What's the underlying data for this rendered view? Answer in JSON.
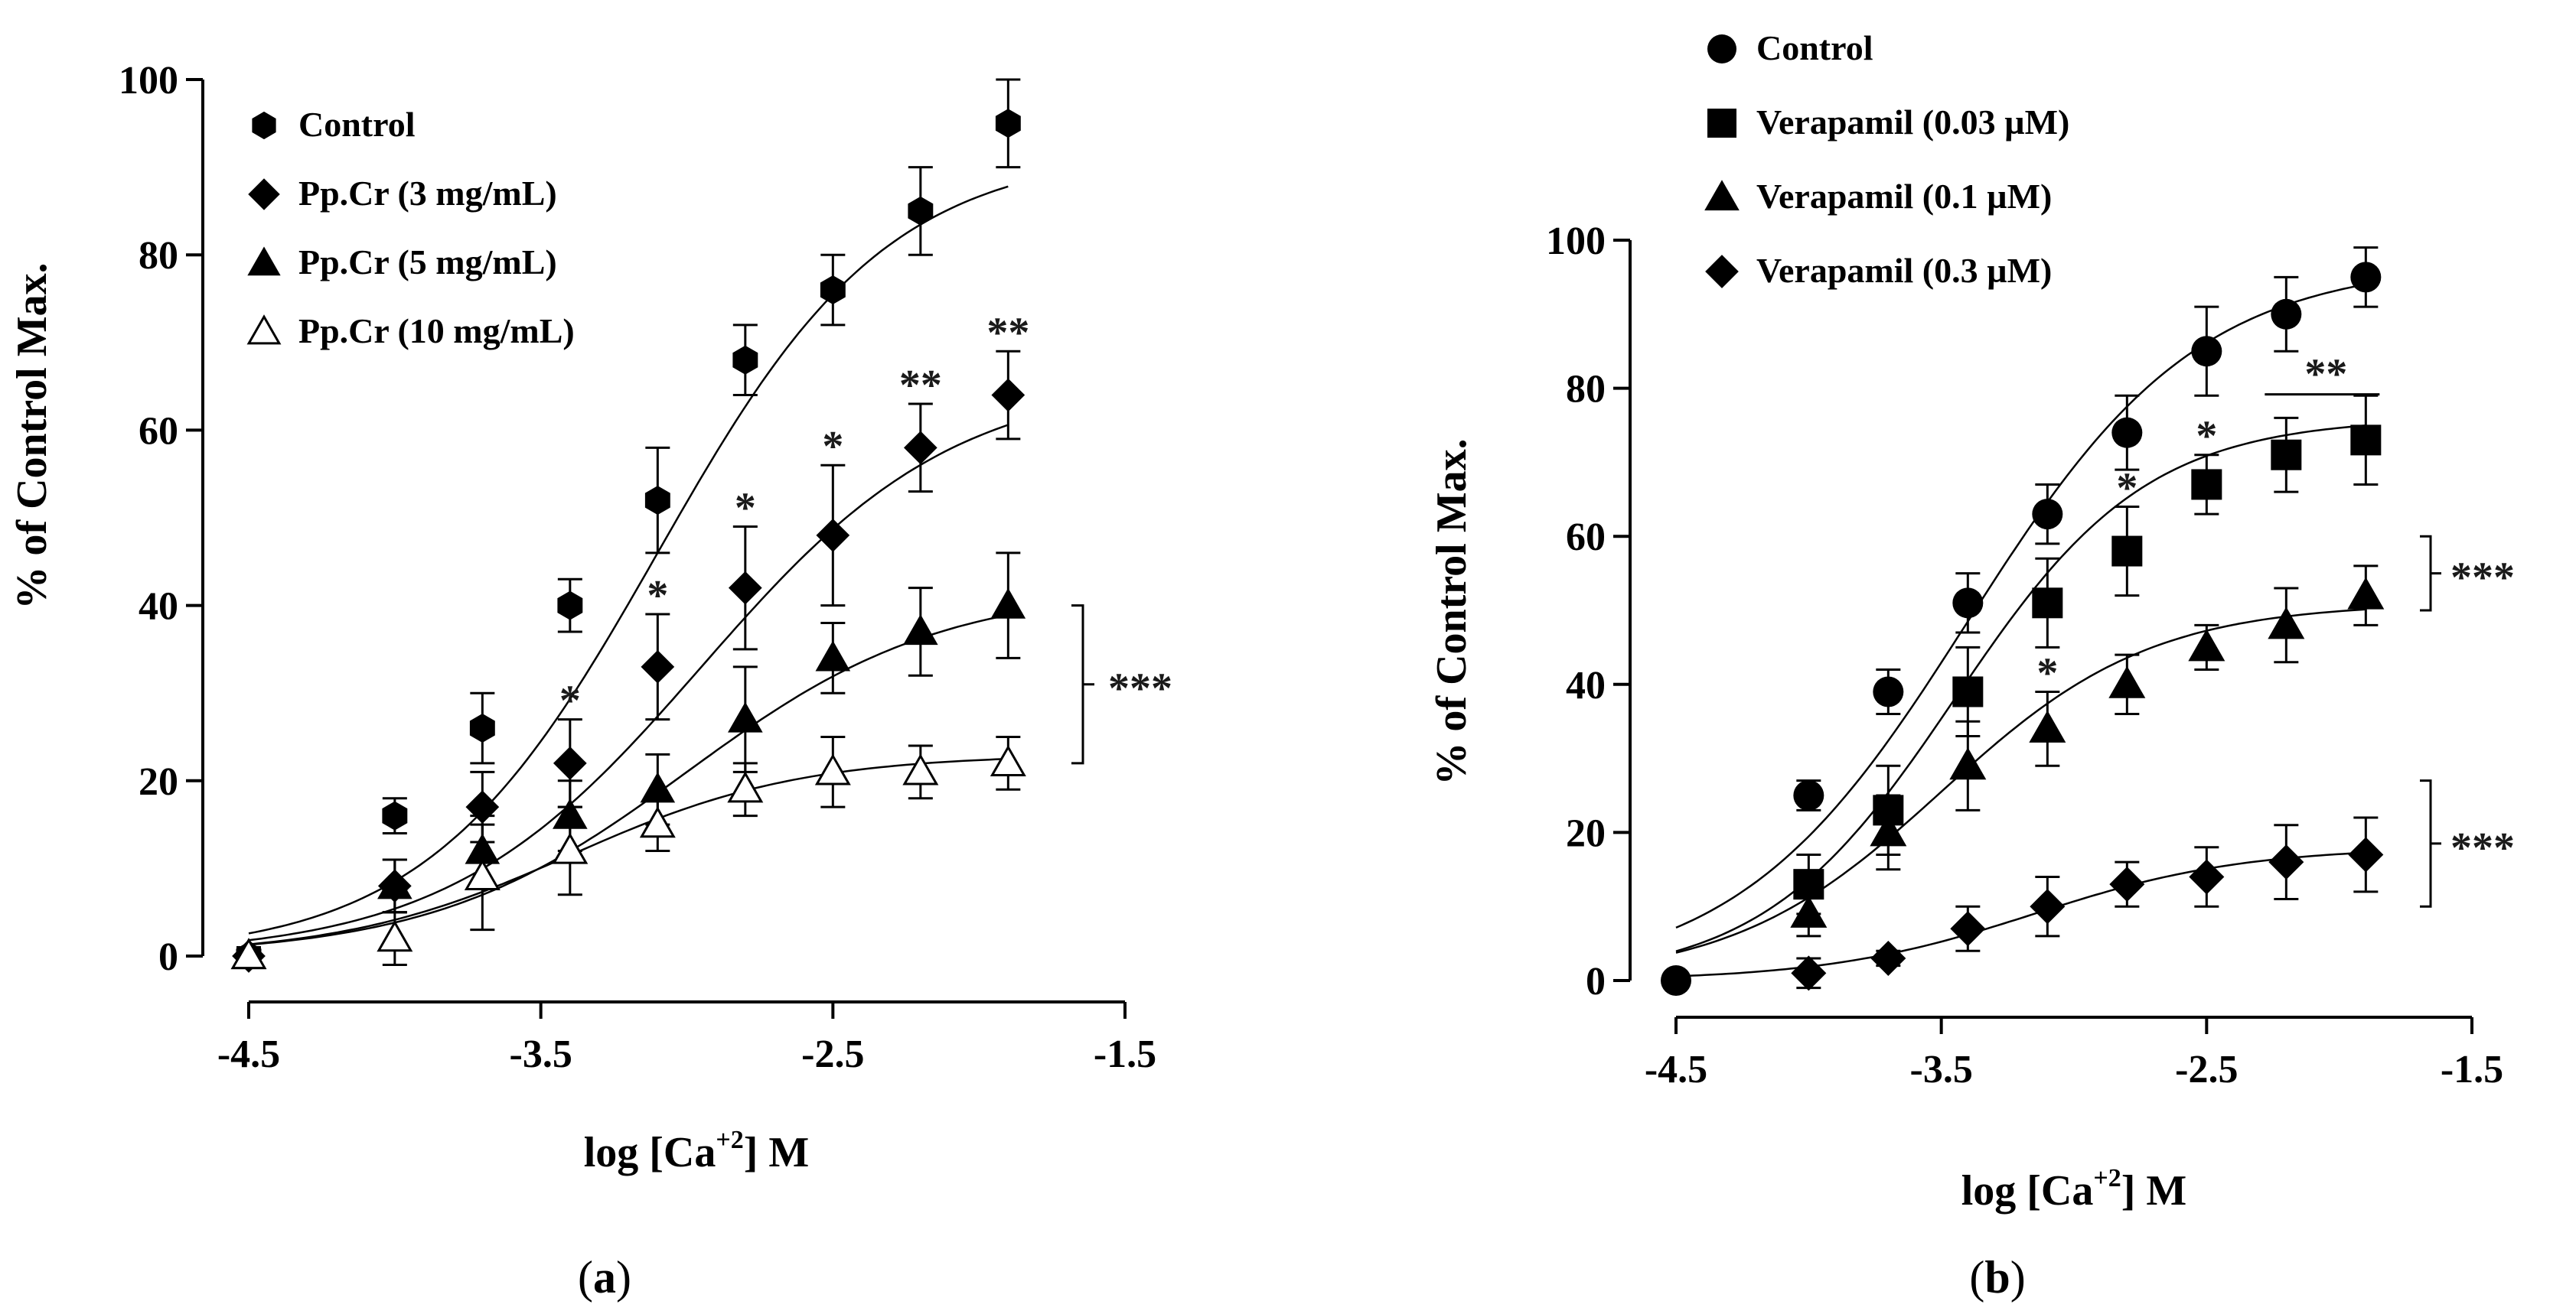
{
  "chart_data": [
    {
      "type": "line",
      "panel_label": "(a)",
      "xlabel_main": "log [Ca",
      "xlabel_sup": "+2",
      "xlabel_tail": "] M",
      "ylabel": "% of Control Max.",
      "xlim": [
        -4.5,
        -1.5
      ],
      "ylim": [
        0,
        100
      ],
      "xticks": [
        "-4.5",
        "-3.5",
        "-2.5",
        "-1.5"
      ],
      "xtick_values": [
        -4.5,
        -3.5,
        -2.5,
        -1.5
      ],
      "yticks": [
        "0",
        "20",
        "40",
        "60",
        "80",
        "100"
      ],
      "ytick_values": [
        0,
        20,
        40,
        60,
        80,
        100
      ],
      "legend_position": "top-left",
      "series": [
        {
          "name": "Control",
          "marker": "hexagon",
          "x": [
            -4.5,
            -4.0,
            -3.7,
            -3.4,
            -3.1,
            -2.8,
            -2.5,
            -2.2,
            -1.9
          ],
          "values": [
            0,
            16,
            26,
            40,
            52,
            68,
            76,
            85,
            95
          ],
          "errors": [
            1,
            2,
            4,
            3,
            6,
            4,
            4,
            5,
            5
          ],
          "curve": {
            "bottom": 0,
            "top": 92,
            "ec50": -3.1,
            "hill": 1.1
          },
          "stars": []
        },
        {
          "name": "Pp.Cr (3 mg/mL)",
          "marker": "diamond",
          "x": [
            -4.5,
            -4.0,
            -3.7,
            -3.4,
            -3.1,
            -2.8,
            -2.5,
            -2.2,
            -1.9
          ],
          "values": [
            0,
            8,
            17,
            22,
            33,
            42,
            48,
            58,
            64
          ],
          "errors": [
            1,
            3,
            4,
            5,
            6,
            7,
            8,
            5,
            5
          ],
          "curve": {
            "bottom": 0,
            "top": 66,
            "ec50": -2.95,
            "hill": 1.0
          },
          "stars": [
            "",
            "",
            "",
            "*",
            "*",
            "*",
            "*",
            "**",
            "**"
          ]
        },
        {
          "name": "Pp.Cr (5 mg/mL)",
          "marker": "triangle",
          "x": [
            -4.5,
            -4.0,
            -3.7,
            -3.4,
            -3.1,
            -2.8,
            -2.5,
            -2.2,
            -1.9
          ],
          "values": [
            0,
            8,
            12,
            16,
            19,
            27,
            34,
            37,
            40
          ],
          "errors": [
            1,
            3,
            4,
            4,
            4,
            6,
            4,
            5,
            6
          ],
          "curve": {
            "bottom": 0,
            "top": 42,
            "ec50": -3.0,
            "hill": 1.0
          },
          "stars": []
        },
        {
          "name": "Pp.Cr (10 mg/mL)",
          "marker": "triangle-open",
          "x": [
            -4.5,
            -4.0,
            -3.7,
            -3.4,
            -3.1,
            -2.8,
            -2.5,
            -2.2,
            -1.9
          ],
          "values": [
            0,
            2,
            9,
            12,
            15,
            19,
            21,
            21,
            22
          ],
          "errors": [
            1,
            3,
            6,
            5,
            3,
            3,
            4,
            3,
            3
          ],
          "curve": {
            "bottom": 0,
            "top": 23,
            "ec50": -3.4,
            "hill": 1.1
          },
          "stars": []
        }
      ],
      "bracket": {
        "from": 22,
        "to": 40,
        "label": "***"
      }
    },
    {
      "type": "line",
      "panel_label": "(b)",
      "xlabel_main": "log [Ca",
      "xlabel_sup": "+2",
      "xlabel_tail": "] M",
      "ylabel": "% of  Control Max.",
      "xlim": [
        -4.5,
        -1.5
      ],
      "ylim": [
        0,
        100
      ],
      "xticks": [
        "-4.5",
        "-3.5",
        "-2.5",
        "-1.5"
      ],
      "xtick_values": [
        -4.5,
        -3.5,
        -2.5,
        -1.5
      ],
      "yticks": [
        "0",
        "20",
        "40",
        "60",
        "80",
        "100"
      ],
      "ytick_values": [
        0,
        20,
        40,
        60,
        80,
        100
      ],
      "legend_position": "top-left",
      "series": [
        {
          "name": "Control",
          "marker": "circle",
          "x": [
            -4.5,
            -4.0,
            -3.7,
            -3.4,
            -3.1,
            -2.8,
            -2.5,
            -2.2,
            -1.9
          ],
          "values": [
            0,
            25,
            39,
            51,
            63,
            74,
            85,
            90,
            95
          ],
          "errors": [
            1,
            2,
            3,
            4,
            4,
            5,
            6,
            5,
            4
          ],
          "curve": {
            "bottom": 0,
            "top": 97,
            "ec50": -3.4,
            "hill": 1.0
          },
          "stars": []
        },
        {
          "name": "Verapamil (0.03  µM)",
          "marker": "square",
          "x": [
            -4.0,
            -3.7,
            -3.4,
            -3.1,
            -2.8,
            -2.5,
            -2.2,
            -1.9
          ],
          "values": [
            13,
            23,
            39,
            51,
            58,
            67,
            71,
            73
          ],
          "errors": [
            4,
            6,
            6,
            6,
            6,
            4,
            5,
            6
          ],
          "curve": {
            "bottom": 0,
            "top": 76,
            "ec50": -3.45,
            "hill": 1.2
          },
          "stars": [
            "",
            "",
            "",
            "",
            "*",
            "*",
            "",
            ""
          ]
        },
        {
          "name": "Verapamil (0.1  µM)",
          "marker": "triangle",
          "x": [
            -4.0,
            -3.7,
            -3.4,
            -3.1,
            -2.8,
            -2.5,
            -2.2,
            -1.9
          ],
          "values": [
            9,
            20,
            29,
            34,
            40,
            45,
            48,
            52
          ],
          "errors": [
            3,
            5,
            6,
            5,
            4,
            3,
            5,
            4
          ],
          "curve": {
            "bottom": 0,
            "top": 51,
            "ec50": -3.5,
            "hill": 1.1
          },
          "stars": [
            "",
            "",
            "",
            "*",
            "",
            "",
            "",
            ""
          ]
        },
        {
          "name": "Verapamil (0.3   µM)",
          "marker": "diamond",
          "x": [
            -4.0,
            -3.7,
            -3.4,
            -3.1,
            -2.8,
            -2.5,
            -2.2,
            -1.9
          ],
          "values": [
            1,
            3,
            7,
            10,
            13,
            14,
            16,
            17
          ],
          "errors": [
            2,
            1,
            3,
            4,
            3,
            4,
            5,
            5
          ],
          "curve": {
            "bottom": 0,
            "top": 18,
            "ec50": -3.15,
            "hill": 1.1
          },
          "stars": []
        }
      ],
      "overline": {
        "from": -2.2,
        "to": -1.9,
        "value": 80,
        "label": "**"
      },
      "brackets": [
        {
          "from": 50,
          "to": 60,
          "label": "***"
        },
        {
          "from": 10,
          "to": 27,
          "label": "***"
        }
      ]
    }
  ]
}
